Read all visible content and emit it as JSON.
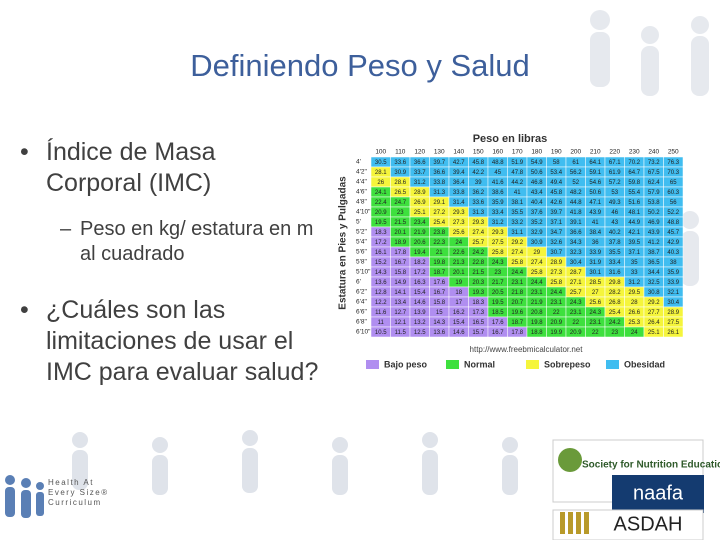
{
  "slide": {
    "title": "Definiendo Peso y Salud",
    "bullets": [
      {
        "text": "Índice de Masa Corporal (IMC)",
        "sub": "Peso en kg/ estatura en m al cuadrado"
      },
      {
        "text": "¿Cuáles son las limitaciones de usar el IMC para evaluar salud?"
      }
    ],
    "footer": "Health At Every Size® Curriculum",
    "logos": [
      "Society for Nutrition Education and Behavior",
      "naafa",
      "ASDAH"
    ]
  },
  "bmi_table": {
    "title": "Peso en libras",
    "row_axis_label": "Estatura en Pies y Pulgadas",
    "columns": [
      100,
      110,
      120,
      130,
      140,
      150,
      160,
      170,
      180,
      190,
      200,
      210,
      220,
      230,
      240,
      250
    ],
    "rows": [
      {
        "label": "4'",
        "values": [
          30.5,
          33.6,
          36.6,
          39.7,
          42.7,
          45.8,
          48.8,
          51.9,
          54.9,
          58.0,
          61.0,
          64.1,
          67.1,
          70.2,
          73.2,
          76.3
        ]
      },
      {
        "label": "4'2\"",
        "values": [
          28.1,
          30.9,
          33.7,
          36.6,
          39.4,
          42.2,
          45.0,
          47.8,
          50.6,
          53.4,
          56.2,
          59.1,
          61.9,
          64.7,
          67.5,
          70.3
        ]
      },
      {
        "label": "4'4\"",
        "values": [
          26.0,
          28.6,
          31.2,
          33.8,
          36.4,
          39.0,
          41.6,
          44.2,
          46.8,
          49.4,
          52.0,
          54.6,
          57.2,
          59.8,
          62.4,
          65.0
        ]
      },
      {
        "label": "4'6\"",
        "values": [
          24.1,
          26.5,
          28.9,
          31.3,
          33.8,
          36.2,
          38.6,
          41.0,
          43.4,
          45.8,
          48.2,
          50.6,
          53.0,
          55.4,
          57.9,
          60.3
        ]
      },
      {
        "label": "4'8\"",
        "values": [
          22.4,
          24.7,
          26.9,
          29.1,
          31.4,
          33.6,
          35.9,
          38.1,
          40.4,
          42.6,
          44.8,
          47.1,
          49.3,
          51.6,
          53.8,
          56.0
        ]
      },
      {
        "label": "4'10\"",
        "values": [
          20.9,
          23.0,
          25.1,
          27.2,
          29.3,
          31.3,
          33.4,
          35.5,
          37.6,
          39.7,
          41.8,
          43.9,
          46.0,
          48.1,
          50.2,
          52.2
        ]
      },
      {
        "label": "5'",
        "values": [
          19.5,
          21.5,
          23.4,
          25.4,
          27.3,
          29.3,
          31.2,
          33.2,
          35.2,
          37.1,
          39.1,
          41.0,
          43.0,
          44.9,
          46.9,
          48.8
        ]
      },
      {
        "label": "5'2\"",
        "values": [
          18.3,
          20.1,
          21.9,
          23.8,
          25.6,
          27.4,
          29.3,
          31.1,
          32.9,
          34.7,
          36.6,
          38.4,
          40.2,
          42.1,
          43.9,
          45.7
        ]
      },
      {
        "label": "5'4\"",
        "values": [
          17.2,
          18.9,
          20.6,
          22.3,
          24.0,
          25.7,
          27.5,
          29.2,
          30.9,
          32.6,
          34.3,
          36.0,
          37.8,
          39.5,
          41.2,
          42.9
        ]
      },
      {
        "label": "5'6\"",
        "values": [
          16.1,
          17.8,
          19.4,
          21.0,
          22.6,
          24.2,
          25.8,
          27.4,
          29.0,
          30.7,
          32.3,
          33.9,
          35.5,
          37.1,
          38.7,
          40.3
        ]
      },
      {
        "label": "5'8\"",
        "values": [
          15.2,
          16.7,
          18.2,
          19.8,
          21.3,
          22.8,
          24.3,
          25.8,
          27.4,
          28.9,
          30.4,
          31.9,
          33.4,
          35.0,
          36.5,
          38.0
        ]
      },
      {
        "label": "5'10\"",
        "values": [
          14.3,
          15.8,
          17.2,
          18.7,
          20.1,
          21.5,
          23.0,
          24.4,
          25.8,
          27.3,
          28.7,
          30.1,
          31.6,
          33.0,
          34.4,
          35.9
        ]
      },
      {
        "label": "6'",
        "values": [
          13.6,
          14.9,
          16.3,
          17.6,
          19.0,
          20.3,
          21.7,
          23.1,
          24.4,
          25.8,
          27.1,
          28.5,
          29.8,
          31.2,
          32.5,
          33.9
        ]
      },
      {
        "label": "6'2\"",
        "values": [
          12.8,
          14.1,
          15.4,
          16.7,
          18.0,
          19.3,
          20.5,
          21.8,
          23.1,
          24.4,
          25.7,
          27.0,
          28.2,
          29.5,
          30.8,
          32.1
        ]
      },
      {
        "label": "6'4\"",
        "values": [
          12.2,
          13.4,
          14.6,
          15.8,
          17.0,
          18.3,
          19.5,
          20.7,
          21.9,
          23.1,
          24.3,
          25.6,
          26.8,
          28.0,
          29.2,
          30.4
        ]
      },
      {
        "label": "6'6\"",
        "values": [
          11.6,
          12.7,
          13.9,
          15.0,
          16.2,
          17.3,
          18.5,
          19.6,
          20.8,
          22.0,
          23.1,
          24.3,
          25.4,
          26.6,
          27.7,
          28.9
        ]
      },
      {
        "label": "6'8\"",
        "values": [
          11.0,
          12.1,
          13.2,
          14.3,
          15.4,
          16.5,
          17.6,
          18.7,
          19.8,
          20.9,
          22.0,
          23.1,
          24.2,
          25.3,
          26.4,
          27.5
        ]
      },
      {
        "label": "6'10\"",
        "values": [
          10.5,
          11.5,
          12.5,
          13.6,
          14.6,
          15.7,
          16.7,
          17.8,
          18.8,
          19.9,
          20.9,
          22.0,
          23.0,
          24.0,
          25.1,
          26.1
        ]
      }
    ],
    "source": "http://www.freebmicalculator.net",
    "legend": [
      {
        "label": "Bajo peso",
        "color": "#b08ef0",
        "min": 0
      },
      {
        "label": "Normal",
        "color": "#3ee03e",
        "min": 18.5
      },
      {
        "label": "Sobrepeso",
        "color": "#f5f53c",
        "min": 25
      },
      {
        "label": "Obesidad",
        "color": "#40bdf0",
        "min": 30
      }
    ]
  }
}
